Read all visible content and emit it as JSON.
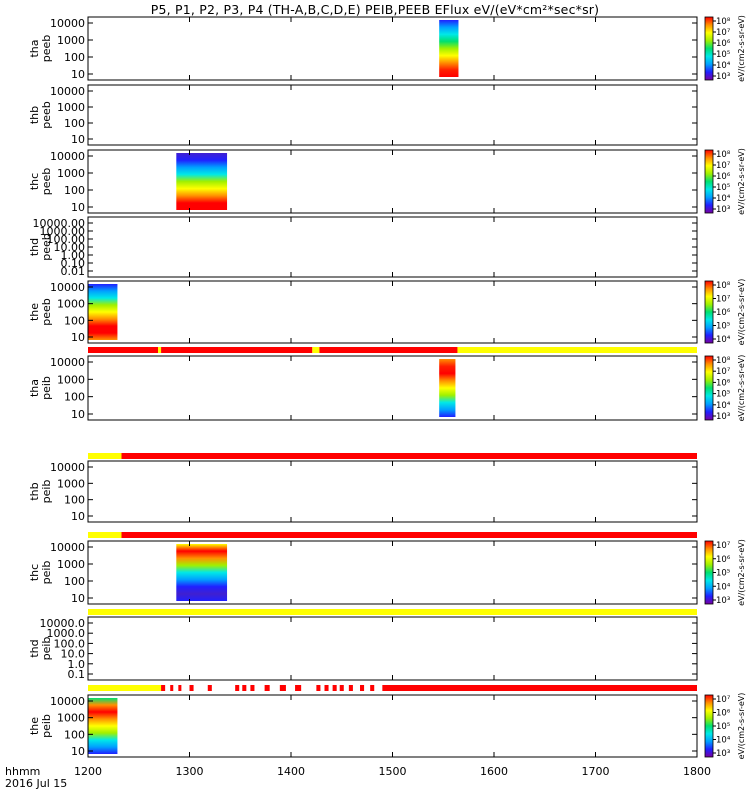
{
  "title": "P5, P1, P2, P3, P4 (TH-A,B,C,D,E) PEIB,PEEB EFlux eV/(eV*cm²*sec*sr)",
  "footer": {
    "time_label": "hhmm",
    "date_label": "2016 Jul 15"
  },
  "colors": {
    "red": "#ff0000",
    "yellow": "#ffff00",
    "black": "#000000",
    "colormap": [
      "#7a00a0",
      "#2020ff",
      "#00a0ff",
      "#00e8e8",
      "#00e070",
      "#a0f000",
      "#ffff00",
      "#ff9000",
      "#ff0000"
    ]
  },
  "colorbar_label_full": "[eV/(cm2-s-sr-eV)] (All Qs)",
  "chart_data": {
    "type": "heatmap",
    "x_axis": {
      "range": [
        1200,
        1800
      ],
      "ticks": [
        "1200",
        "1300",
        "1400",
        "1500",
        "1600",
        "1700",
        "1800"
      ]
    },
    "panels": [
      {
        "ylabel": [
          "tha",
          "peeb"
        ],
        "yticks": [
          "10",
          "100",
          "1000",
          "10000"
        ],
        "colorbar": {
          "ticks": [
            "10³",
            "10⁴",
            "10⁵",
            "10⁶",
            "10⁷",
            "10⁸"
          ],
          "label": "eV/(cm2-s-sr-eV)"
        },
        "data_blocks": [
          {
            "x": [
              1546,
              1565
            ],
            "profile": [
              "#ff0000",
              "#ff2000",
              "#ff9000",
              "#ffff00",
              "#a0f000",
              "#00e070",
              "#00e8e8",
              "#00a0ff",
              "#2020ff"
            ]
          }
        ]
      },
      {
        "ylabel": [
          "thb",
          "peeb"
        ],
        "yticks": [
          "10",
          "100",
          "1000",
          "10000"
        ],
        "colorbar": null,
        "data_blocks": []
      },
      {
        "ylabel": [
          "thc",
          "peeb"
        ],
        "yticks": [
          "10",
          "100",
          "1000",
          "10000"
        ],
        "colorbar": {
          "ticks": [
            "10³",
            "10⁴",
            "10⁵",
            "10⁶",
            "10⁷",
            "10⁸"
          ],
          "label": "eV/(cm2-s-sr-eV)"
        },
        "data_blocks": [
          {
            "x": [
              1287,
              1337
            ],
            "profile": [
              "#ff0000",
              "#ff0000",
              "#ff9000",
              "#ffff00",
              "#a0f000",
              "#00e8e8",
              "#00a0ff",
              "#2020ff",
              "#4020d0"
            ]
          }
        ]
      },
      {
        "ylabel": [
          "thd",
          "peeb"
        ],
        "yticks": [
          "0.01",
          "0.10",
          "1.00",
          "10.00",
          "100.00",
          "1000.00",
          "10000.00"
        ],
        "colorbar": null,
        "data_blocks": []
      },
      {
        "ylabel": [
          "the",
          "peeb"
        ],
        "yticks": [
          "10",
          "100",
          "1000",
          "10000"
        ],
        "colorbar": {
          "ticks": [
            "10⁴",
            "10⁵",
            "10⁶",
            "10⁷",
            "10⁸"
          ],
          "label": "eV/(cm2-s-sr-eV)"
        },
        "data_blocks": [
          {
            "x": [
              1200,
              1229
            ],
            "profile": [
              "#ff9000",
              "#ff0000",
              "#ff0000",
              "#ff9000",
              "#ffff00",
              "#a0f000",
              "#00e8e8",
              "#00a0ff",
              "#2020ff"
            ]
          }
        ],
        "flag_bar_after": [
          {
            "x": [
              1200,
              1269
            ],
            "c": "#ff0000"
          },
          {
            "x": [
              1269,
              1272
            ],
            "c": "#ffff00"
          },
          {
            "x": [
              1272,
              1421
            ],
            "c": "#ff0000"
          },
          {
            "x": [
              1421,
              1428
            ],
            "c": "#ffff00"
          },
          {
            "x": [
              1428,
              1564
            ],
            "c": "#ff0000"
          },
          {
            "x": [
              1564,
              1800
            ],
            "c": "#ffff00"
          }
        ]
      },
      {
        "ylabel": [
          "tha",
          "peib"
        ],
        "yticks": [
          "10",
          "100",
          "1000",
          "10000"
        ],
        "colorbar": {
          "ticks": [
            "10³",
            "10⁴",
            "10⁵",
            "10⁶",
            "10⁷",
            "10⁸"
          ],
          "label": "eV/(cm2-s-sr-eV)"
        },
        "data_blocks": [
          {
            "x": [
              1546,
              1562
            ],
            "profile": [
              "#2020ff",
              "#00a0ff",
              "#00e8e8",
              "#a0f000",
              "#ffff00",
              "#ff9000",
              "#ff0000",
              "#ff2000",
              "#ff9000"
            ]
          }
        ],
        "flag_bar_after": [
          {
            "x": [
              1200,
              1233
            ],
            "c": "#ffff00"
          },
          {
            "x": [
              1233,
              1800
            ],
            "c": "#ff0000"
          }
        ]
      },
      {
        "ylabel": [
          "thb",
          "peib"
        ],
        "yticks": [
          "10",
          "100",
          "1000",
          "10000"
        ],
        "colorbar": null,
        "data_blocks": [],
        "flag_bar_after": [
          {
            "x": [
              1200,
              1233
            ],
            "c": "#ffff00"
          },
          {
            "x": [
              1233,
              1800
            ],
            "c": "#ff0000"
          }
        ]
      },
      {
        "ylabel": [
          "thc",
          "peib"
        ],
        "yticks": [
          "10",
          "100",
          "1000",
          "10000"
        ],
        "colorbar": {
          "ticks": [
            "10³",
            "10⁴",
            "10⁵",
            "10⁶",
            "10⁷"
          ],
          "label": "eV/(cm2-s-sr-eV)"
        },
        "data_blocks": [
          {
            "x": [
              1287,
              1337
            ],
            "profile": [
              "#2020ff",
              "#4020d0",
              "#2020ff",
              "#00a0ff",
              "#00e8e8",
              "#a0f000",
              "#ff9000",
              "#ff0000",
              "#ffff00"
            ]
          }
        ],
        "flag_bar_after": [
          {
            "x": [
              1200,
              1800
            ],
            "c": "#ffff00"
          }
        ]
      },
      {
        "ylabel": [
          "thd",
          "peib"
        ],
        "yticks": [
          "0.1",
          "1.0",
          "10.0",
          "100.0",
          "1000.0",
          "10000.0"
        ],
        "colorbar": null,
        "data_blocks": [],
        "flag_bar_after": [
          {
            "x": [
              1200,
              1272
            ],
            "c": "#ffff00"
          },
          {
            "x": [
              1272,
              1276
            ],
            "c": "#ff0000"
          },
          {
            "x": [
              1281,
              1284
            ],
            "c": "#ff0000"
          },
          {
            "x": [
              1289,
              1292
            ],
            "c": "#ff0000"
          },
          {
            "x": [
              1300,
              1304
            ],
            "c": "#ff0000"
          },
          {
            "x": [
              1318,
              1322
            ],
            "c": "#ff0000"
          },
          {
            "x": [
              1345,
              1349
            ],
            "c": "#ff0000"
          },
          {
            "x": [
              1352,
              1356
            ],
            "c": "#ff0000"
          },
          {
            "x": [
              1360,
              1364
            ],
            "c": "#ff0000"
          },
          {
            "x": [
              1374,
              1379
            ],
            "c": "#ff0000"
          },
          {
            "x": [
              1389,
              1395
            ],
            "c": "#ff0000"
          },
          {
            "x": [
              1404,
              1410
            ],
            "c": "#ff0000"
          },
          {
            "x": [
              1425,
              1429
            ],
            "c": "#ff0000"
          },
          {
            "x": [
              1433,
              1437
            ],
            "c": "#ff0000"
          },
          {
            "x": [
              1441,
              1445
            ],
            "c": "#ff0000"
          },
          {
            "x": [
              1448,
              1452
            ],
            "c": "#ff0000"
          },
          {
            "x": [
              1457,
              1461
            ],
            "c": "#ff0000"
          },
          {
            "x": [
              1468,
              1472
            ],
            "c": "#ff0000"
          },
          {
            "x": [
              1478,
              1482
            ],
            "c": "#ff0000"
          },
          {
            "x": [
              1490,
              1800
            ],
            "c": "#ff0000"
          }
        ]
      },
      {
        "ylabel": [
          "the",
          "peib"
        ],
        "yticks": [
          "10",
          "100",
          "1000",
          "10000"
        ],
        "colorbar": {
          "ticks": [
            "10³",
            "10⁴",
            "10⁵",
            "10⁶",
            "10⁷"
          ],
          "label": "eV/(cm2-s-sr-eV)"
        },
        "data_blocks": [
          {
            "x": [
              1200,
              1229
            ],
            "profile": [
              "#2020ff",
              "#00a0ff",
              "#00e8e8",
              "#a0f000",
              "#ffff00",
              "#ff9000",
              "#ff0000",
              "#ff9000",
              "#00e070"
            ]
          }
        ]
      }
    ]
  }
}
